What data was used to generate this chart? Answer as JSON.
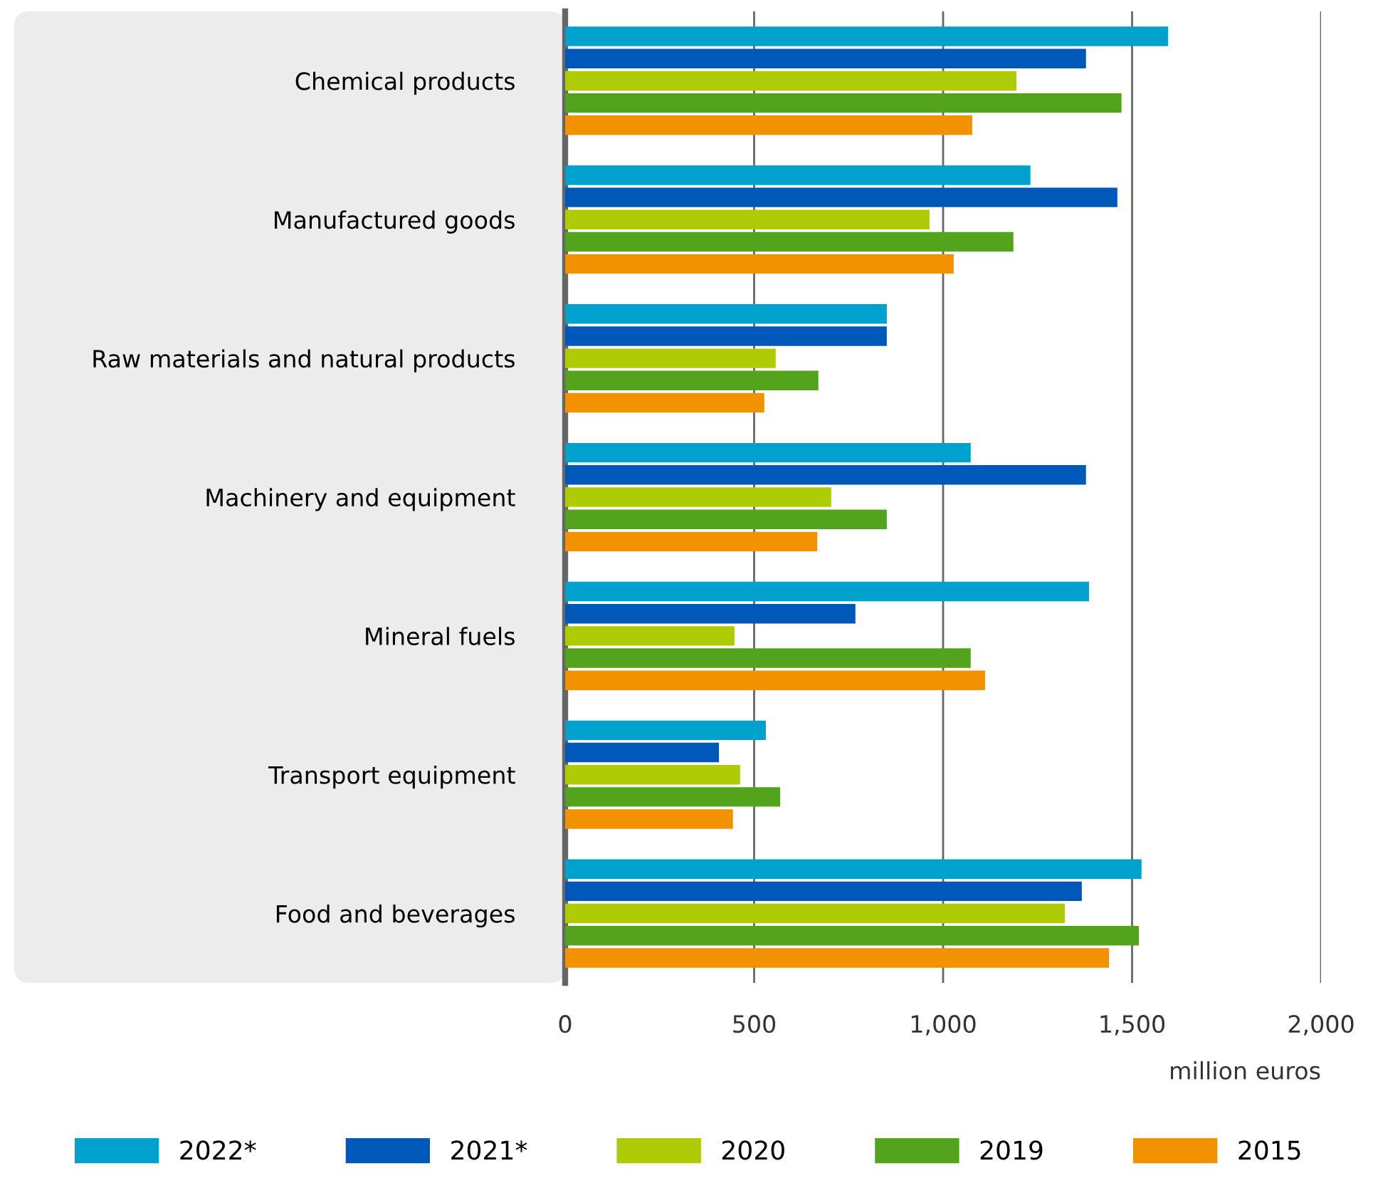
{
  "chart_data": {
    "type": "bar",
    "orientation": "horizontal",
    "xlabel": "million euros",
    "categories": [
      "Chemical products",
      "Manufactured goods",
      "Raw materials and natural products",
      "Machinery and equipment",
      "Mineral fuels",
      "Transport equipment",
      "Food and beverages"
    ],
    "series": [
      {
        "name": "2022*",
        "color": "#00a1cd",
        "values": [
          1595,
          1231,
          851,
          1073,
          1386,
          531,
          1525
        ]
      },
      {
        "name": "2021*",
        "color": "#0058b8",
        "values": [
          1378,
          1461,
          851,
          1378,
          768,
          407,
          1367
        ]
      },
      {
        "name": "2020",
        "color": "#afcb05",
        "values": [
          1194,
          964,
          557,
          704,
          448,
          463,
          1322
        ]
      },
      {
        "name": "2019",
        "color": "#53a31d",
        "values": [
          1472,
          1186,
          670,
          851,
          1073,
          569,
          1518
        ]
      },
      {
        "name": "2015",
        "color": "#f39200",
        "values": [
          1077,
          1028,
          527,
          667,
          1111,
          444,
          1439
        ]
      }
    ],
    "xlim": [
      0,
      2000
    ],
    "xticks": [
      0,
      {
        "value": 500,
        "label": "500"
      },
      {
        "value": 1000,
        "label": "1,000"
      },
      {
        "value": 1500,
        "label": "1,500"
      },
      {
        "value": 2000,
        "label": "2,000"
      }
    ],
    "grid": "x",
    "legend": "bottom"
  }
}
